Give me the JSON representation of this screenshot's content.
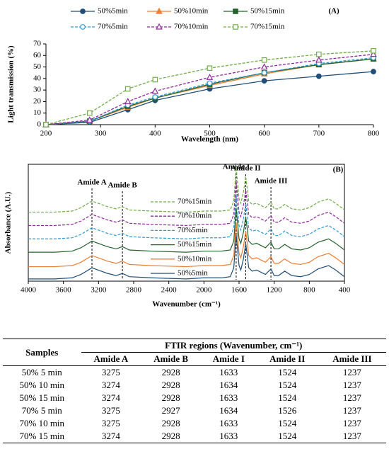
{
  "chart_data": [
    {
      "type": "line",
      "title": "(A)",
      "x_label": "Wavelength (nm)",
      "y_label": "Light transmission (%)",
      "x": [
        200,
        280,
        350,
        400,
        500,
        600,
        700,
        800
      ],
      "xlim": [
        200,
        800
      ],
      "xticks": [
        200,
        300,
        400,
        500,
        600,
        700,
        800
      ],
      "ylim": [
        0,
        70
      ],
      "yticks": [
        0,
        10,
        20,
        30,
        40,
        50,
        60,
        70
      ],
      "series": [
        {
          "name": "50%5min",
          "color": "#1f4e79",
          "marker": "circle",
          "filled": true,
          "dashed": false,
          "values": [
            0,
            2,
            13,
            21,
            31,
            38,
            42,
            46
          ]
        },
        {
          "name": "50%10min",
          "color": "#ed7d31",
          "marker": "triangle",
          "filled": true,
          "dashed": false,
          "values": [
            0,
            3,
            15,
            23,
            34,
            44,
            52,
            57
          ]
        },
        {
          "name": "50%15min",
          "color": "#23632a",
          "marker": "square",
          "filled": true,
          "dashed": false,
          "values": [
            0,
            3,
            16,
            23,
            35,
            45,
            52,
            57
          ]
        },
        {
          "name": "70%5min",
          "color": "#2e9bd6",
          "marker": "circle",
          "filled": false,
          "dashed": true,
          "values": [
            0,
            3,
            17,
            24,
            36,
            45,
            53,
            58
          ]
        },
        {
          "name": "70%10min",
          "color": "#8e2a9c",
          "marker": "triangle",
          "filled": false,
          "dashed": true,
          "values": [
            0,
            4,
            20,
            29,
            41,
            50,
            56,
            61
          ]
        },
        {
          "name": "70%15min",
          "color": "#70ad47",
          "marker": "square",
          "filled": false,
          "dashed": true,
          "values": [
            0,
            10,
            31,
            39,
            49,
            56,
            61,
            64
          ]
        }
      ]
    },
    {
      "type": "line",
      "title": "(B)",
      "x_label": "Wavenumber (cm⁻¹)",
      "y_label": "Absorbance (A.U.)",
      "x": [
        4000,
        3700,
        3500,
        3400,
        3275,
        3100,
        3000,
        2928,
        2850,
        2600,
        2200,
        2000,
        1800,
        1700,
        1660,
        1633,
        1600,
        1580,
        1550,
        1524,
        1490,
        1450,
        1400,
        1300,
        1237,
        1200,
        1150,
        1080,
        1000,
        900,
        800,
        700,
        580,
        500,
        400
      ],
      "xlim": [
        4000,
        400
      ],
      "xticks": [
        4000,
        3600,
        3200,
        2800,
        2400,
        2000,
        1600,
        1200,
        800,
        400
      ],
      "ylim": [
        0,
        105
      ],
      "annotations": [
        {
          "text": "Amide A",
          "x": 3275
        },
        {
          "text": "Amide B",
          "x": 2928
        },
        {
          "text": "Amide I",
          "x": 1633
        },
        {
          "text": "Amide II",
          "x": 1524
        },
        {
          "text": "Amide III",
          "x": 1237
        }
      ],
      "series": [
        {
          "name": "50%5min",
          "color": "#1f4e79",
          "dashed": false,
          "values": [
            2,
            2,
            3,
            6,
            12,
            7,
            5,
            7,
            4,
            3,
            2,
            3,
            3,
            4,
            12,
            42,
            14,
            10,
            20,
            34,
            12,
            9,
            10,
            6,
            11,
            5,
            5,
            9,
            5,
            4,
            6,
            11,
            14,
            10,
            4
          ]
        },
        {
          "name": "50%10min",
          "color": "#ed7d31",
          "dashed": false,
          "values": [
            13,
            13,
            14,
            17,
            23,
            18,
            16,
            18,
            15,
            14,
            13,
            14,
            14,
            15,
            23,
            53,
            25,
            21,
            31,
            45,
            23,
            20,
            21,
            17,
            22,
            16,
            16,
            20,
            16,
            15,
            17,
            22,
            25,
            21,
            15
          ]
        },
        {
          "name": "50%15min",
          "color": "#23632a",
          "dashed": false,
          "values": [
            26,
            26,
            27,
            30,
            36,
            31,
            29,
            31,
            28,
            27,
            26,
            27,
            27,
            28,
            36,
            66,
            38,
            34,
            44,
            58,
            36,
            33,
            34,
            30,
            35,
            29,
            29,
            33,
            29,
            28,
            30,
            35,
            38,
            34,
            28
          ]
        },
        {
          "name": "70%5min",
          "color": "#2e9bd6",
          "dashed": true,
          "values": [
            38,
            38,
            39,
            42,
            48,
            43,
            41,
            43,
            40,
            39,
            38,
            39,
            39,
            40,
            48,
            78,
            50,
            46,
            56,
            70,
            48,
            45,
            46,
            42,
            47,
            41,
            41,
            45,
            41,
            40,
            42,
            47,
            50,
            46,
            40
          ]
        },
        {
          "name": "70%10min",
          "color": "#8e2a9c",
          "dashed": true,
          "values": [
            50,
            50,
            51,
            54,
            60,
            55,
            53,
            55,
            52,
            51,
            50,
            51,
            51,
            52,
            60,
            90,
            62,
            58,
            68,
            82,
            60,
            57,
            58,
            54,
            59,
            53,
            53,
            57,
            53,
            52,
            54,
            59,
            62,
            58,
            52
          ]
        },
        {
          "name": "70%15min",
          "color": "#70ad47",
          "dashed": true,
          "values": [
            62,
            62,
            63,
            66,
            72,
            67,
            65,
            67,
            64,
            63,
            62,
            63,
            63,
            64,
            72,
            102,
            74,
            70,
            80,
            94,
            72,
            69,
            70,
            66,
            71,
            65,
            65,
            69,
            65,
            64,
            66,
            71,
            74,
            70,
            64
          ]
        }
      ]
    }
  ],
  "table": {
    "header": [
      "Samples",
      "FTIR regions (Wavenumber, cm⁻¹)"
    ],
    "columns": [
      "Amide A",
      "Amide B",
      "Amide I",
      "Amide II",
      "Amide III"
    ],
    "rows": [
      [
        "50% 5 min",
        3275,
        2928,
        1633,
        1524,
        1237
      ],
      [
        "50% 10 min",
        3274,
        2928,
        1634,
        1524,
        1237
      ],
      [
        "50% 15 min",
        3274,
        2928,
        1633,
        1524,
        1237
      ],
      [
        "70% 5 min",
        3275,
        2927,
        1634,
        1526,
        1237
      ],
      [
        "70% 10 min",
        3275,
        2928,
        1633,
        1524,
        1237
      ],
      [
        "70% 15 min",
        3274,
        2928,
        1633,
        1524,
        1237
      ]
    ]
  }
}
